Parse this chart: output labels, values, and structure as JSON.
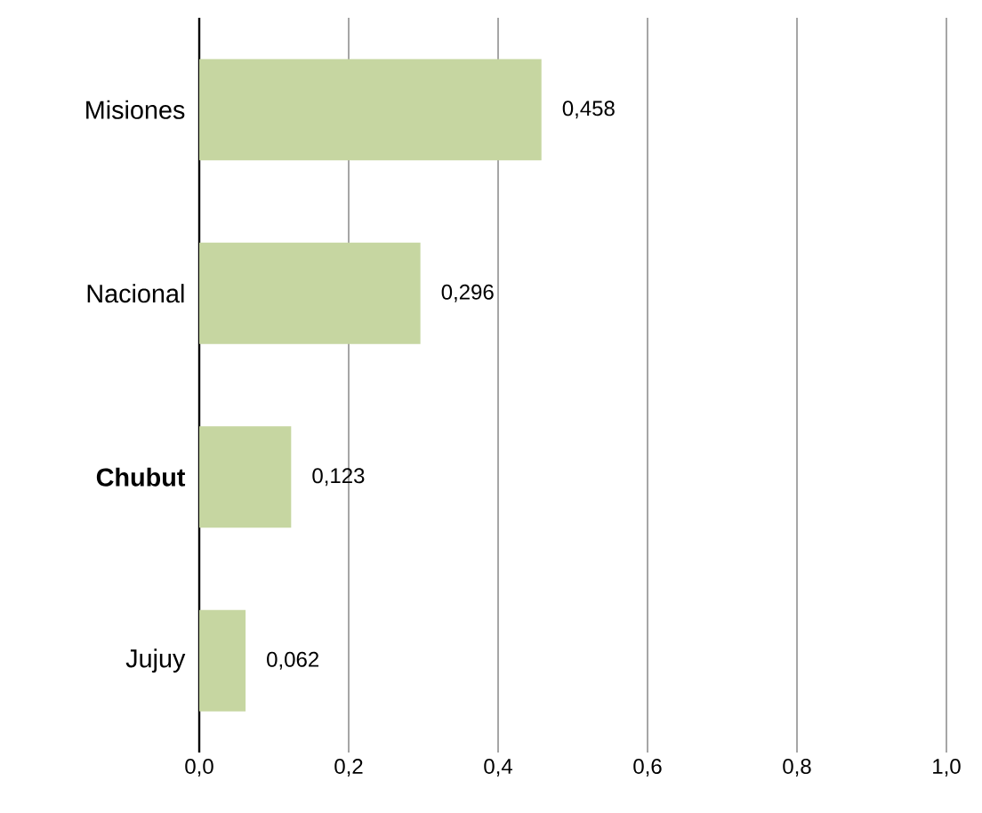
{
  "chart_data": {
    "type": "bar",
    "orientation": "horizontal",
    "categories": [
      "Misiones",
      "Nacional",
      "**Chubut**",
      "Jujuy"
    ],
    "values": [
      0.458,
      0.296,
      0.123,
      0.062
    ],
    "value_labels": [
      "0,458",
      "0,296",
      "0,123",
      "0,062"
    ],
    "color": "#c6d6a1",
    "xlim": [
      0,
      1
    ],
    "xticks": [
      {
        "value": 0,
        "label": "0,0"
      },
      {
        "value": 0.2,
        "label": "0,2"
      },
      {
        "value": 0.4,
        "label": "0,4"
      },
      {
        "value": 0.6,
        "label": "0,6"
      },
      {
        "value": 0.8,
        "label": "0,8"
      },
      {
        "value": 1,
        "label": "1,0"
      }
    ],
    "grid": "x"
  }
}
